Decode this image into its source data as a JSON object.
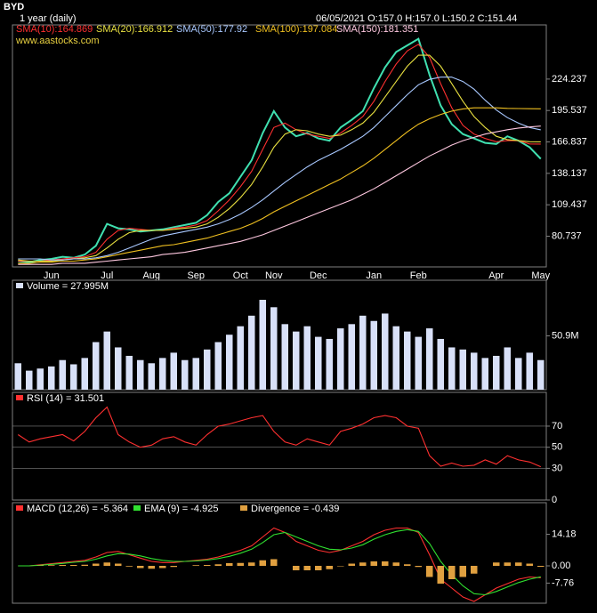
{
  "chart_data": [
    {
      "type": "line",
      "title": "BYD",
      "subtitle": "1 year (daily)",
      "quote": "06/05/2021  O:157.0 H:157.0 L:150.2 C:151.44",
      "source": "www.aastocks.com",
      "categories": [
        null,
        null,
        null,
        "Jun",
        null,
        null,
        null,
        null,
        "Jul",
        null,
        null,
        null,
        "Aug",
        null,
        null,
        null,
        "Sep",
        null,
        null,
        null,
        "Oct",
        null,
        null,
        "Nov",
        null,
        null,
        null,
        "Dec",
        null,
        null,
        null,
        null,
        "Jan",
        null,
        null,
        null,
        "Feb",
        null,
        null,
        null,
        null,
        null,
        null,
        "Apr",
        null,
        null,
        null,
        "May"
      ],
      "series": [
        {
          "color": "#40e0b0",
          "values": [
            58,
            57,
            59,
            60,
            62,
            61,
            64,
            72,
            92,
            88,
            87,
            85,
            86,
            87,
            89,
            91,
            93,
            100,
            112,
            120,
            135,
            150,
            175,
            195,
            180,
            172,
            175,
            170,
            168,
            180,
            187,
            195,
            216,
            235,
            249,
            255,
            261,
            228,
            200,
            183,
            174,
            170,
            166,
            165,
            172,
            168,
            162,
            151.44
          ]
        },
        {
          "name": "SMA(10):164.869",
          "color": "#ff3030",
          "values": [
            58,
            58,
            58,
            59,
            60,
            61,
            62,
            66,
            78,
            86,
            88,
            87,
            86,
            86,
            88,
            89,
            91,
            95,
            104,
            114,
            126,
            140,
            160,
            180,
            184,
            178,
            174,
            172,
            170,
            175,
            182,
            190,
            204,
            222,
            238,
            250,
            256,
            244,
            220,
            198,
            182,
            174,
            170,
            167,
            168,
            168,
            165,
            164.869
          ]
        },
        {
          "name": "SMA(20):166.912",
          "color": "#e8e040",
          "values": [
            59,
            58,
            58,
            58,
            59,
            60,
            61,
            63,
            70,
            78,
            84,
            86,
            86,
            86,
            87,
            88,
            89,
            92,
            98,
            106,
            116,
            128,
            144,
            162,
            174,
            178,
            177,
            174,
            172,
            173,
            178,
            184,
            194,
            208,
            222,
            236,
            246,
            246,
            236,
            220,
            204,
            190,
            180,
            172,
            169,
            168,
            167,
            166.912
          ]
        },
        {
          "name": "SMA(50):177.92",
          "color": "#a8c8ff",
          "values": [
            60,
            60,
            60,
            59,
            59,
            60,
            60,
            61,
            63,
            66,
            70,
            74,
            78,
            81,
            83,
            85,
            87,
            89,
            92,
            96,
            101,
            107,
            114,
            122,
            130,
            137,
            144,
            150,
            155,
            160,
            166,
            172,
            180,
            190,
            200,
            210,
            219,
            224,
            226,
            226,
            222,
            215,
            205,
            196,
            189,
            184,
            180,
            177.92
          ]
        },
        {
          "name": "SMA(100):197.084",
          "color": "#f0c020",
          "values": [
            56,
            56,
            57,
            57,
            58,
            58,
            59,
            60,
            62,
            64,
            66,
            68,
            70,
            72,
            73,
            75,
            77,
            79,
            82,
            85,
            88,
            92,
            97,
            103,
            108,
            113,
            118,
            123,
            128,
            133,
            139,
            145,
            152,
            160,
            168,
            176,
            183,
            188,
            192,
            195,
            197,
            198,
            198,
            198,
            197.5,
            197.3,
            197.2,
            197.084
          ]
        },
        {
          "name": "SMA(150):181.351",
          "color": "#ffc8e0",
          "values": [
            55,
            55,
            55,
            55,
            56,
            56,
            56,
            57,
            58,
            59,
            60,
            61,
            62,
            64,
            65,
            66,
            68,
            70,
            72,
            74,
            76,
            79,
            82,
            86,
            90,
            94,
            98,
            102,
            106,
            110,
            114,
            119,
            124,
            130,
            136,
            142,
            148,
            154,
            159,
            164,
            168,
            171,
            174,
            176,
            178,
            179.5,
            180.5,
            181.351
          ]
        }
      ],
      "ylim": [
        52.7,
        273.7
      ],
      "yticks": [
        80.737,
        109.437,
        138.137,
        166.837,
        195.537,
        224.237
      ]
    },
    {
      "type": "bar",
      "label": "Volume = 27.995M",
      "color": "#d8e0f8",
      "values": [
        25,
        18,
        20,
        22,
        28,
        24,
        30,
        45,
        55,
        40,
        32,
        28,
        25,
        30,
        35,
        28,
        30,
        38,
        45,
        52,
        60,
        70,
        85,
        78,
        62,
        55,
        60,
        50,
        48,
        58,
        62,
        70,
        65,
        72,
        60,
        55,
        50,
        58,
        48,
        40,
        38,
        35,
        30,
        32,
        40,
        30,
        35,
        27.995
      ],
      "ylim": [
        0,
        103.5
      ],
      "yticks": [
        {
          "value": 50.9,
          "label": "50.9M"
        }
      ]
    },
    {
      "type": "line",
      "grid": true,
      "series": [
        {
          "name": "RSI (14) = 31.501",
          "color": "#ff3030",
          "values": [
            62,
            55,
            58,
            60,
            62,
            56,
            65,
            78,
            88,
            62,
            55,
            50,
            52,
            58,
            60,
            55,
            52,
            62,
            70,
            72,
            75,
            78,
            80,
            65,
            55,
            52,
            58,
            55,
            52,
            65,
            68,
            72,
            78,
            80,
            78,
            70,
            68,
            42,
            32,
            35,
            32,
            33,
            38,
            34,
            42,
            38,
            36,
            31.501
          ]
        }
      ],
      "ylim": [
        0,
        102
      ],
      "yticks": [
        0,
        30,
        50,
        70
      ]
    },
    {
      "type": "line",
      "series": [
        {
          "name": "MACD (12,26) = -5.364",
          "color": "#ff3030",
          "values": [
            0,
            0,
            0.5,
            1,
            1.5,
            2,
            2.5,
            4,
            6,
            6.5,
            5,
            3.5,
            2,
            1.5,
            1.5,
            2,
            2.5,
            3,
            4,
            5.5,
            7,
            9,
            13,
            17,
            15,
            11,
            9,
            7,
            6,
            7,
            9,
            11,
            14,
            16,
            17,
            17,
            15,
            5,
            -6,
            -10,
            -14,
            -16,
            -13,
            -10,
            -8,
            -6,
            -5,
            -5.364
          ]
        },
        {
          "name": "EMA (9) = -4.925",
          "color": "#30e030",
          "values": [
            0,
            0,
            0.3,
            0.7,
            1.1,
            1.6,
            2,
            3,
            4.5,
            5.5,
            5.3,
            4.5,
            3.3,
            2.5,
            2,
            2,
            2.2,
            2.6,
            3.3,
            4.3,
            5.7,
            7.5,
            10.5,
            14,
            15,
            13,
            11,
            9,
            7.5,
            7.2,
            8,
            9.5,
            12,
            14,
            15.5,
            16.3,
            15.5,
            10,
            2,
            -4,
            -9,
            -12.5,
            -13,
            -11.5,
            -9.5,
            -7.5,
            -6,
            -4.925
          ]
        },
        {
          "name": "Divergence = -0.439",
          "color": "#e0a040",
          "style": "bar",
          "values": [
            0,
            0,
            0.2,
            0.3,
            0.4,
            0.4,
            0.5,
            1,
            1.5,
            1,
            -0.3,
            -1,
            -1.3,
            -1,
            -0.5,
            0,
            0.3,
            0.4,
            0.7,
            1.2,
            1.3,
            1.5,
            2.5,
            3,
            0,
            -2,
            -2,
            -2,
            -1.5,
            -0.2,
            1,
            1.5,
            2,
            2,
            1.5,
            0.7,
            -0.5,
            -5,
            -8,
            -6,
            -5,
            -3.5,
            0,
            1.5,
            1.5,
            1.5,
            1,
            -0.439
          ]
        }
      ],
      "ylim": [
        -16.8,
        28.4
      ],
      "yticks": [
        -7.76,
        {
          "value": 0,
          "label": "0.00"
        },
        14.18
      ]
    }
  ]
}
